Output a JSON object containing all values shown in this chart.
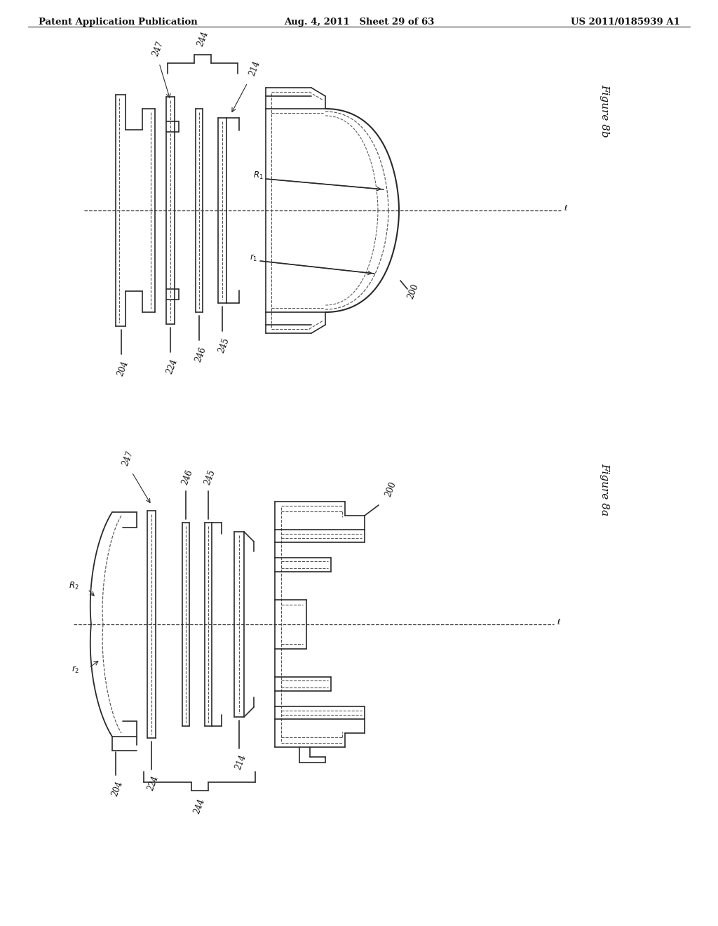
{
  "title_left": "Patent Application Publication",
  "title_center": "Aug. 4, 2011   Sheet 29 of 63",
  "title_right": "US 2011/0185939 A1",
  "fig8b_label": "Figure 8b",
  "fig8a_label": "Figure 8a",
  "background_color": "#ffffff",
  "line_color": "#2a2a2a",
  "dashed_color": "#555555",
  "text_color": "#111111",
  "header_font_size": 9.5,
  "label_font_size": 8.5,
  "fig_label_font_size": 11
}
